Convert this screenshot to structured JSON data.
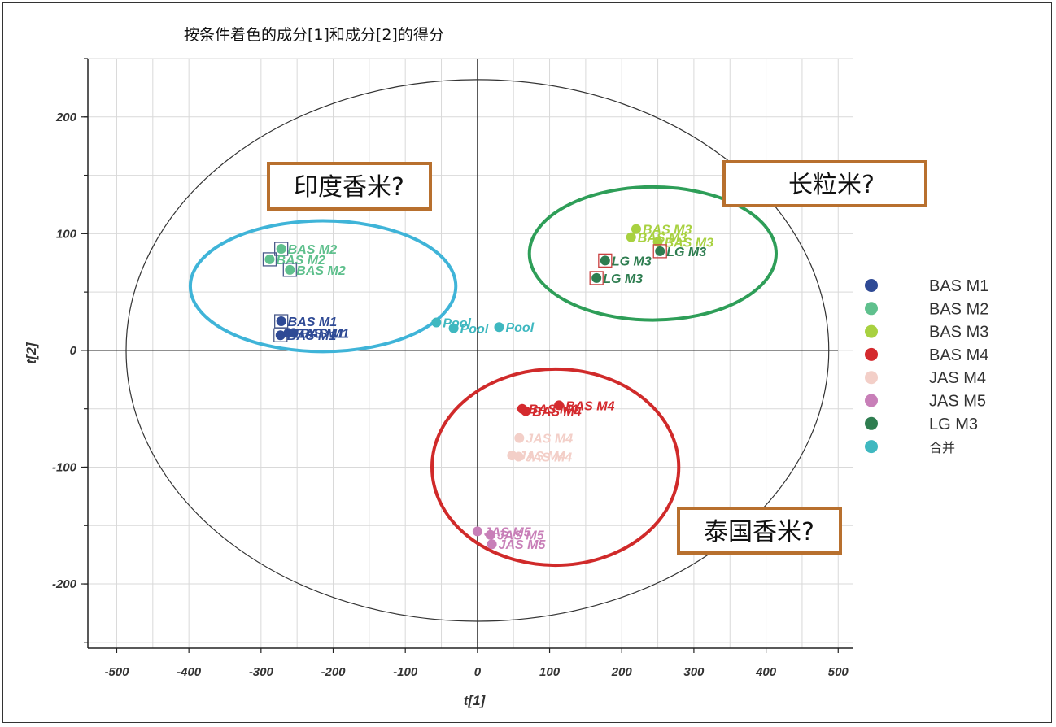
{
  "chart_data": {
    "type": "scatter",
    "title": "按条件着色的成分[1]和成分[2]的得分",
    "xlabel": "t[1]",
    "ylabel": "t[2]",
    "xlim": [
      -540,
      520
    ],
    "ylim": [
      -255,
      250
    ],
    "xticks": [
      -500,
      -400,
      -300,
      -200,
      -100,
      0,
      100,
      200,
      300,
      400,
      500
    ],
    "yticks": [
      -200,
      -100,
      0,
      100,
      200
    ],
    "grid": true,
    "legend_position": "right",
    "series": [
      {
        "name": "BAS M1",
        "color": "#2f4a95",
        "points": [
          {
            "x": -272,
            "y": 25,
            "label": "BAS M1",
            "marked": true
          },
          {
            "x": -273,
            "y": 13,
            "label": "BAS M1",
            "marked": true
          },
          {
            "x": -262,
            "y": 15,
            "label": "BAS M1",
            "marked": false
          },
          {
            "x": -255,
            "y": 15,
            "label": "BAS M1",
            "marked": false
          }
        ]
      },
      {
        "name": "BAS M2",
        "color": "#5fc08d",
        "points": [
          {
            "x": -272,
            "y": 87,
            "label": "BAS M2",
            "marked": true
          },
          {
            "x": -288,
            "y": 78,
            "label": "BAS M2",
            "marked": true
          },
          {
            "x": -260,
            "y": 69,
            "label": "BAS M2",
            "marked": true
          }
        ]
      },
      {
        "name": "BAS M3",
        "color": "#a8d140",
        "points": [
          {
            "x": 220,
            "y": 104,
            "label": "BAS M3",
            "marked": false
          },
          {
            "x": 213,
            "y": 97,
            "label": "BAS M3",
            "marked": false
          },
          {
            "x": 250,
            "y": 93,
            "label": "BAS M3",
            "marked": false
          }
        ]
      },
      {
        "name": "BAS M4",
        "color": "#d42a2e",
        "points": [
          {
            "x": 113,
            "y": -47,
            "label": "BAS M4",
            "marked": false
          },
          {
            "x": 62,
            "y": -50,
            "label": "BAS M4",
            "marked": false
          },
          {
            "x": 67,
            "y": -52,
            "label": "BAS M4",
            "marked": false
          }
        ]
      },
      {
        "name": "JAS M4",
        "color": "#f3cfc8",
        "points": [
          {
            "x": 58,
            "y": -75,
            "label": "JAS M4",
            "marked": false
          },
          {
            "x": 48,
            "y": -90,
            "label": "JAS M4",
            "marked": false
          },
          {
            "x": 57,
            "y": -91,
            "label": "JAS M4",
            "marked": false
          }
        ]
      },
      {
        "name": "JAS M5",
        "color": "#c87fb8",
        "points": [
          {
            "x": 0,
            "y": -155,
            "label": "JAS M5",
            "marked": false
          },
          {
            "x": 18,
            "y": -158,
            "label": "JAS M5",
            "marked": false
          },
          {
            "x": 20,
            "y": -166,
            "label": "JAS M5",
            "marked": false
          }
        ]
      },
      {
        "name": "LG M3",
        "color": "#2e7d50",
        "points": [
          {
            "x": 253,
            "y": 85,
            "label": "LG M3",
            "marked": true
          },
          {
            "x": 177,
            "y": 77,
            "label": "LG M3",
            "marked": true
          },
          {
            "x": 165,
            "y": 62,
            "label": "LG M3",
            "marked": true
          }
        ]
      },
      {
        "name": "合并",
        "color": "#3fb8c0",
        "points": [
          {
            "x": -57,
            "y": 24,
            "label": "Pool",
            "marked": false
          },
          {
            "x": -33,
            "y": 19,
            "label": "Pool",
            "marked": false
          },
          {
            "x": 30,
            "y": 20,
            "label": "Pool",
            "marked": false
          }
        ]
      }
    ],
    "annotations": [
      {
        "text": "印度香米?",
        "group_color": "#3fb4d8",
        "ellipse_center": [
          -214,
          55
        ],
        "ellipse_radius": [
          184,
          56
        ]
      },
      {
        "text": "长粒米?",
        "group_color": "#2e9e58",
        "ellipse_center": [
          243,
          83
        ],
        "ellipse_radius": [
          171,
          57
        ]
      },
      {
        "text": "泰国香米?",
        "group_color": "#d02a2a",
        "ellipse_center": [
          108,
          -100
        ],
        "ellipse_radius": [
          171,
          84
        ]
      }
    ],
    "confidence_ellipse": {
      "center": [
        0,
        0
      ],
      "radius": [
        487,
        232
      ]
    }
  },
  "colors": {
    "annotation_box_border": "#b8702e",
    "grid": "#d9d9d9",
    "axis": "#222222"
  }
}
